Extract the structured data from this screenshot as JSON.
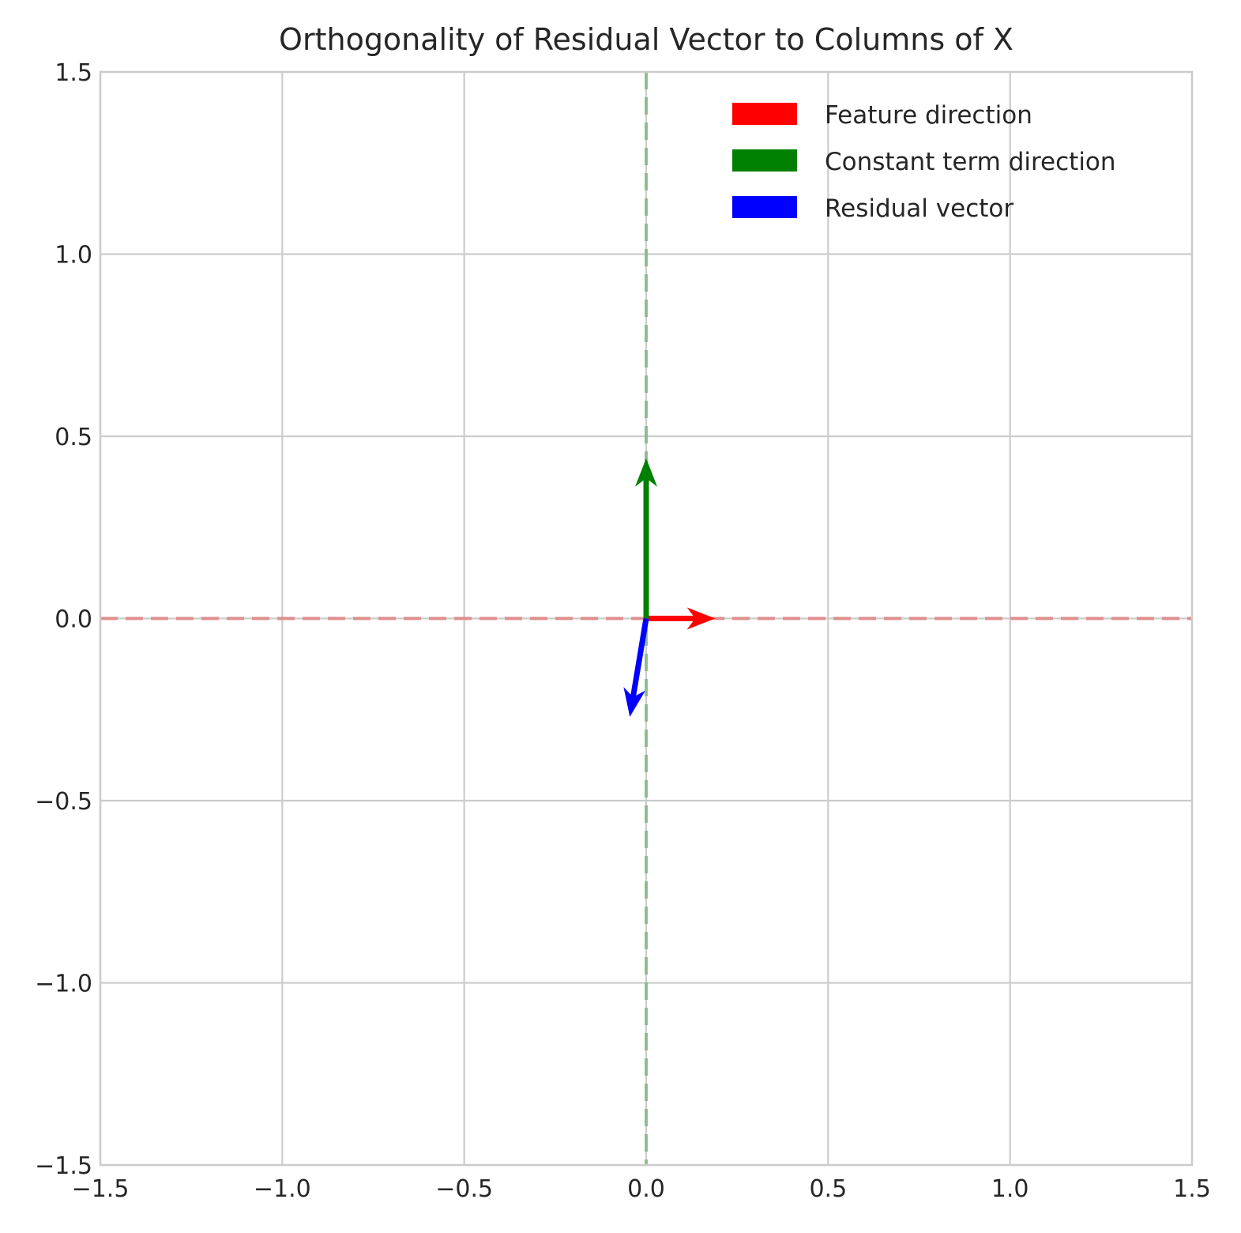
{
  "chart_data": {
    "type": "quiver",
    "title": "Orthogonality of Residual Vector to Columns of X",
    "xlabel": "",
    "ylabel": "",
    "xlim": [
      -1.5,
      1.5
    ],
    "ylim": [
      -1.5,
      1.5
    ],
    "xticks": [
      -1.5,
      -1.0,
      -0.5,
      0.0,
      0.5,
      1.0,
      1.5
    ],
    "yticks": [
      -1.5,
      -1.0,
      -0.5,
      0.0,
      0.5,
      1.0,
      1.5
    ],
    "xtick_labels": [
      "−1.5",
      "−1.0",
      "−0.5",
      "0.0",
      "0.5",
      "1.0",
      "1.5"
    ],
    "ytick_labels": [
      "−1.5",
      "−1.0",
      "−0.5",
      "0.0",
      "0.5",
      "1.0",
      "1.5"
    ],
    "grid": true,
    "legend_position": "top-right",
    "vectors": [
      {
        "name": "Feature direction",
        "color": "#ff0000",
        "origin": [
          0,
          0
        ],
        "components": [
          0.19,
          0.0
        ]
      },
      {
        "name": "Constant term direction",
        "color": "#008000",
        "origin": [
          0,
          0
        ],
        "components": [
          0.0,
          0.44
        ]
      },
      {
        "name": "Residual vector",
        "color": "#0000ff",
        "origin": [
          0,
          0
        ],
        "components": [
          -0.045,
          -0.27
        ]
      }
    ],
    "reference_lines": [
      {
        "orientation": "horizontal",
        "value": 0.0,
        "color": "#e08080",
        "style": "dashed"
      },
      {
        "orientation": "vertical",
        "value": 0.0,
        "color": "#80b880",
        "style": "dashed"
      }
    ]
  }
}
